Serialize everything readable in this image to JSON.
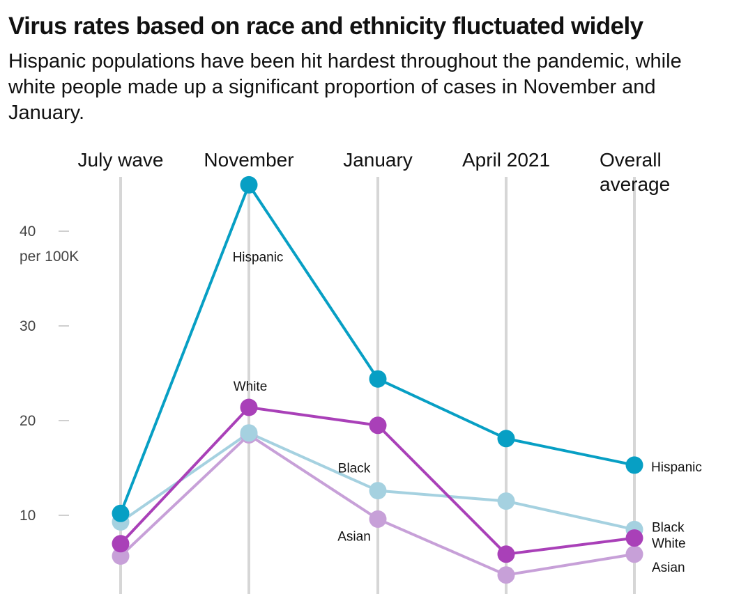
{
  "title": "Virus rates based on race and ethnicity fluctuated widely",
  "subtitle": "Hispanic populations have been hit hardest throughout the pandemic, while white people made up a significant proportion of cases in November and January.",
  "chart_data": {
    "type": "line",
    "title": "Virus rates based on race and ethnicity fluctuated widely",
    "subtitle": "Hispanic populations have been hit hardest throughout the pandemic, while white people made up a significant proportion of cases in November and January.",
    "categories": [
      "July wave",
      "November",
      "January",
      "April 2021",
      "Overall\naverage"
    ],
    "y_ticks": [
      {
        "value": 10,
        "label": "10"
      },
      {
        "value": 20,
        "label": "20"
      },
      {
        "value": 30,
        "label": "30"
      },
      {
        "value": 40,
        "label": "40"
      }
    ],
    "y_unit_label": "per 100K",
    "ylim": [
      2,
      46
    ],
    "grid": "vertical lines at each category",
    "series": [
      {
        "name": "Asian",
        "color": "#c7a0d8",
        "values": [
          5.7,
          18.5,
          9.6,
          3.7,
          5.9
        ]
      },
      {
        "name": "Black",
        "color": "#a5d1e0",
        "values": [
          9.3,
          18.7,
          12.6,
          11.5,
          8.5
        ]
      },
      {
        "name": "White",
        "color": "#a940b8",
        "values": [
          7.0,
          21.4,
          19.5,
          5.9,
          7.6
        ]
      },
      {
        "name": "Hispanic",
        "color": "#079fc4",
        "values": [
          10.2,
          44.9,
          24.4,
          18.1,
          15.3
        ]
      }
    ],
    "annotations": [
      {
        "text": "Hispanic",
        "series": "Hispanic",
        "category": "November"
      },
      {
        "text": "White",
        "series": "White",
        "category": "November"
      },
      {
        "text": "Black",
        "series": "Black",
        "category": "January"
      },
      {
        "text": "Asian",
        "series": "Asian",
        "category": "January"
      },
      {
        "text": "Hispanic",
        "series": "Hispanic",
        "category": "Overall\naverage"
      },
      {
        "text": "Black",
        "series": "Black",
        "category": "Overall\naverage"
      },
      {
        "text": "White",
        "series": "White",
        "category": "Overall\naverage"
      },
      {
        "text": "Asian",
        "series": "Asian",
        "category": "Overall\naverage"
      }
    ]
  }
}
